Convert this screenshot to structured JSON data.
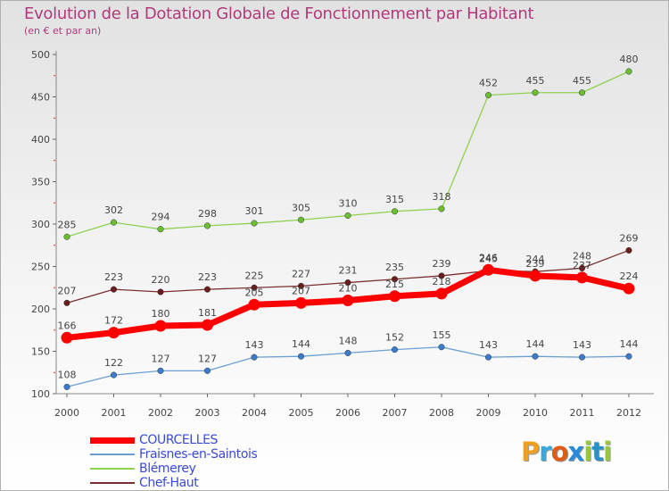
{
  "chart_data": {
    "type": "line",
    "title": "Evolution de la Dotation Globale de Fonctionnement par Habitant",
    "subtitle": "(en € et par an)",
    "xlabel": "",
    "ylabel": "",
    "x": [
      "2000",
      "2001",
      "2002",
      "2003",
      "2004",
      "2005",
      "2006",
      "2007",
      "2008",
      "2009",
      "2010",
      "2011",
      "2012"
    ],
    "ylim": [
      100,
      500
    ],
    "yticks": [
      100,
      150,
      200,
      250,
      300,
      350,
      400,
      450,
      500
    ],
    "grid": false,
    "legend_position": "bottom-left",
    "series": [
      {
        "name": "Blémerey",
        "color": "#8fd050",
        "marker": "#6abf30",
        "width": 1.3,
        "values": [
          285,
          302,
          294,
          298,
          301,
          305,
          310,
          315,
          318,
          452,
          455,
          455,
          480
        ]
      },
      {
        "name": "Chef-Haut",
        "color": "#7a3030",
        "marker": "#6b1c1c",
        "width": 1.3,
        "values": [
          207,
          223,
          220,
          223,
          225,
          227,
          231,
          235,
          239,
          245,
          244,
          248,
          269
        ]
      },
      {
        "name": "Fraisnes-en-Saintois",
        "color": "#6a9ed0",
        "marker": "#3a7ccc",
        "width": 1.3,
        "values": [
          108,
          122,
          127,
          127,
          143,
          144,
          148,
          152,
          155,
          143,
          144,
          143,
          144
        ]
      },
      {
        "name": "COURCELLES",
        "color": "#ff0000",
        "marker": "#ff0000",
        "width": 7,
        "values": [
          166,
          172,
          180,
          181,
          205,
          207,
          210,
          215,
          218,
          246,
          239,
          237,
          224
        ]
      }
    ]
  },
  "legend": {
    "items": [
      {
        "label": "COURCELLES",
        "color": "#ff0000"
      },
      {
        "label": "Fraisnes-en-Saintois",
        "color": "#6a9ed0"
      },
      {
        "label": "Blémerey",
        "color": "#8fd050"
      },
      {
        "label": "Chef-Haut",
        "color": "#7a3030"
      }
    ]
  },
  "logo": {
    "parts": [
      "P",
      "r",
      "o",
      "x",
      "i",
      "t",
      "i"
    ]
  }
}
